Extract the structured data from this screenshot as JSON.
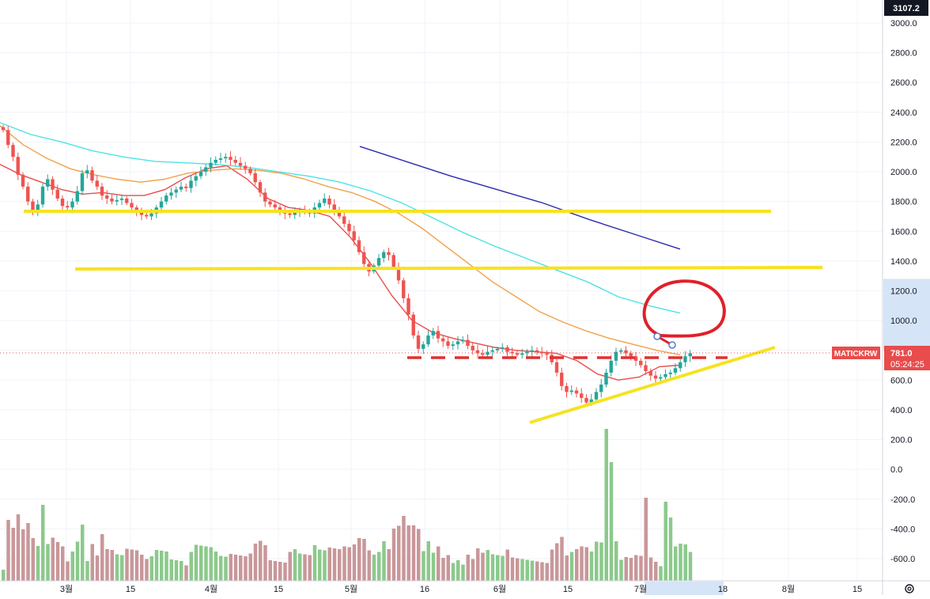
{
  "symbol": "MATICKRW",
  "chart_data": {
    "type": "candlestick",
    "price_axis": {
      "ticks": [
        3000,
        2800,
        2600,
        2400,
        2200,
        2000,
        1800,
        1600,
        1400,
        1200,
        1000,
        800,
        600,
        400,
        200,
        0,
        -200,
        -400,
        -600
      ],
      "labels": [
        "3000.0",
        "2800.0",
        "2600.0",
        "2400.0",
        "2200.0",
        "2000.0",
        "1800.0",
        "1600.0",
        "1400.0",
        "1200.0",
        "1000.0",
        "",
        "600.0",
        "400.0",
        "200.0",
        "0.0",
        "-200.0",
        "-400.0",
        "-600.0"
      ],
      "top_label": "3107.2",
      "highlight_range": [
        800,
        1280
      ]
    },
    "time_axis": {
      "labels": [
        "3월",
        "15",
        "4월",
        "15",
        "5월",
        "16",
        "6월",
        "15",
        "7월",
        "18",
        "8월",
        "15"
      ],
      "highlight_label_index": 9
    },
    "last_price": {
      "value": 781.0,
      "label": "781.0",
      "countdown": "05:24:25"
    },
    "closes": [
      2280,
      2180,
      2100,
      1980,
      1900,
      1800,
      1740,
      1780,
      1900,
      1950,
      1880,
      1820,
      1770,
      1760,
      1800,
      1870,
      1990,
      2010,
      1940,
      1900,
      1840,
      1820,
      1800,
      1810,
      1820,
      1790,
      1760,
      1730,
      1710,
      1700,
      1720,
      1760,
      1800,
      1840,
      1860,
      1880,
      1900,
      1890,
      1940,
      1970,
      2000,
      2030,
      2060,
      2080,
      2090,
      2100,
      2080,
      2060,
      2040,
      2020,
      1990,
      1930,
      1860,
      1800,
      1780,
      1760,
      1740,
      1720,
      1710,
      1730,
      1740,
      1730,
      1720,
      1760,
      1790,
      1820,
      1780,
      1740,
      1700,
      1650,
      1600,
      1540,
      1460,
      1380,
      1330,
      1370,
      1420,
      1460,
      1440,
      1360,
      1270,
      1150,
      1040,
      900,
      810,
      840,
      900,
      930,
      880,
      860,
      830,
      840,
      860,
      870,
      830,
      800,
      780,
      770,
      790,
      800,
      810,
      820,
      790,
      780,
      770,
      780,
      790,
      800,
      790,
      780,
      770,
      720,
      650,
      560,
      520,
      530,
      510,
      480,
      450,
      470,
      520,
      570,
      650,
      730,
      790,
      800,
      780,
      760,
      730,
      700,
      660,
      630,
      610,
      620,
      640,
      650,
      680,
      720,
      760,
      781
    ],
    "moving_averages": [
      {
        "color": "#e84c4c",
        "values": [
          2050,
          1980,
          1930,
          1880,
          1850,
          1860,
          1840,
          1840,
          1880,
          1960,
          2020,
          2040,
          1950,
          1820,
          1760,
          1740,
          1700,
          1560,
          1380,
          1170,
          1000,
          920,
          880,
          850,
          820,
          800,
          790,
          780,
          730,
          640,
          600,
          620,
          690,
          700
        ]
      },
      {
        "color": "#f0a24a",
        "values": [
          2310,
          2180,
          2090,
          2020,
          1980,
          1950,
          1930,
          1950,
          1990,
          2010,
          2020,
          2010,
          1990,
          1950,
          1900,
          1860,
          1800,
          1720,
          1620,
          1500,
          1380,
          1260,
          1160,
          1060,
          990,
          930,
          880,
          840,
          800,
          770
        ]
      },
      {
        "color": "#4de3e3",
        "values": [
          2330,
          2250,
          2200,
          2140,
          2100,
          2070,
          2060,
          2050,
          2030,
          2000,
          1970,
          1930,
          1870,
          1790,
          1690,
          1590,
          1500,
          1420,
          1340,
          1260,
          1160,
          1100,
          1050
        ]
      },
      {
        "color": "#2a2ab0",
        "values": [
          2170,
          2070,
          1970,
          1880,
          1790,
          1680,
          1580,
          1480
        ]
      }
    ],
    "volume": {
      "baseline": -700,
      "scale_top": 290
    },
    "grid": true
  }
}
